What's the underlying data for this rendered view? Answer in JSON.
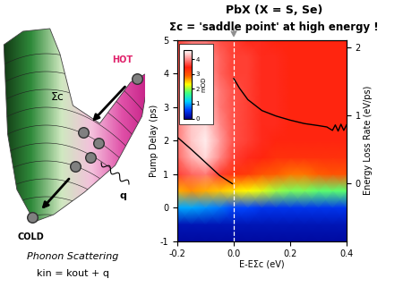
{
  "header": {
    "title": "PbX (X = S, Se)",
    "subtitle": "Σc = 'saddle point' at high energy !"
  },
  "diagram": {
    "hot": "HOT",
    "cold": "COLD",
    "sigma": "Σc",
    "q": "q",
    "caption": "Phonon Scattering",
    "equation": "kin = kout + q"
  },
  "chart_data": {
    "type": "heatmap",
    "x": [
      -0.2,
      -0.15,
      -0.1,
      -0.05,
      0.0,
      0.05,
      0.1,
      0.15,
      0.2,
      0.25,
      0.3,
      0.35,
      0.4
    ],
    "y": [
      -1,
      -0.5,
      0,
      0.5,
      1,
      1.5,
      2,
      2.5,
      3,
      3.5,
      4,
      4.5,
      5
    ],
    "cells": [
      [
        0.1,
        0.1,
        0.1,
        0.1,
        0.1,
        0.1,
        0.1,
        0.1,
        0.1,
        0.1,
        0.1,
        0.1,
        0.1
      ],
      [
        0.2,
        0.2,
        0.2,
        0.2,
        0.2,
        0.2,
        0.2,
        0.2,
        0.2,
        0.2,
        0.2,
        0.2,
        0.2
      ],
      [
        1.0,
        1.0,
        0.9,
        0.8,
        0.6,
        0.6,
        0.5,
        0.5,
        0.5,
        0.5,
        0.5,
        0.5,
        0.5
      ],
      [
        2.6,
        2.7,
        2.6,
        2.5,
        2.4,
        2.3,
        2.2,
        2.0,
        1.9,
        1.9,
        1.8,
        1.8,
        1.8
      ],
      [
        3.6,
        3.8,
        3.9,
        3.6,
        3.3,
        3.2,
        3.0,
        2.9,
        2.8,
        2.8,
        2.9,
        3.0,
        3.0
      ],
      [
        3.8,
        4.2,
        4.4,
        4.0,
        3.6,
        3.5,
        3.4,
        3.3,
        3.3,
        3.3,
        3.3,
        3.3,
        3.3
      ],
      [
        3.9,
        4.3,
        4.5,
        4.1,
        3.7,
        3.6,
        3.5,
        3.4,
        3.4,
        3.4,
        3.4,
        3.4,
        3.4
      ],
      [
        3.9,
        4.3,
        4.4,
        4.0,
        3.7,
        3.6,
        3.5,
        3.5,
        3.4,
        3.4,
        3.4,
        3.4,
        3.4
      ],
      [
        3.8,
        4.2,
        4.3,
        3.9,
        3.7,
        3.6,
        3.5,
        3.5,
        3.4,
        3.4,
        3.4,
        3.4,
        3.4
      ],
      [
        3.8,
        4.1,
        4.2,
        3.9,
        3.7,
        3.6,
        3.5,
        3.5,
        3.4,
        3.4,
        3.4,
        3.4,
        3.4
      ],
      [
        3.7,
        4.0,
        4.1,
        3.8,
        3.6,
        3.6,
        3.5,
        3.5,
        3.4,
        3.4,
        3.4,
        3.4,
        3.4
      ],
      [
        3.7,
        3.9,
        4.0,
        3.8,
        3.6,
        3.6,
        3.5,
        3.5,
        3.4,
        3.4,
        3.4,
        3.4,
        3.4
      ],
      [
        3.6,
        3.9,
        3.9,
        3.7,
        3.6,
        3.5,
        3.5,
        3.4,
        3.4,
        3.4,
        3.4,
        3.4,
        3.4
      ]
    ],
    "xlim": [
      -0.2,
      0.4
    ],
    "ylim": [
      -1,
      5
    ],
    "xticks": [
      -0.2,
      {
        "value": 0,
        "label": "0.0"
      },
      0.2,
      0.4
    ],
    "yticks": [
      -1,
      0,
      1,
      2,
      3,
      4,
      5
    ],
    "xlabel": "E-EΣc (eV)",
    "ylabel": "Pump Delay (ps)",
    "y2label": "Energy Loss Rate (eV/ps)",
    "y2lim": [
      -0.84,
      2.1
    ],
    "y2ticks": [
      0,
      1,
      2
    ],
    "colorbar": {
      "label": "mOD",
      "range": [
        0,
        4.6
      ],
      "ticks": [
        0,
        1,
        2,
        3,
        4
      ]
    },
    "vline": 0,
    "series": [
      {
        "color": "#000000",
        "axis": "y2",
        "type": "line",
        "x": [
          -0.2,
          -0.15,
          -0.1,
          -0.05,
          -0.02,
          -0.005
        ],
        "values": [
          0.68,
          0.5,
          0.31,
          0.12,
          0.04,
          0.0
        ]
      },
      {
        "color": "#000000",
        "axis": "y2",
        "type": "line",
        "x": [
          0.0,
          0.02,
          0.05,
          0.1,
          0.15,
          0.2,
          0.25,
          0.3,
          0.33,
          0.35,
          0.36,
          0.37,
          0.38,
          0.39,
          0.4
        ],
        "values": [
          1.54,
          1.4,
          1.23,
          1.07,
          0.99,
          0.93,
          0.88,
          0.85,
          0.83,
          0.78,
          0.86,
          0.77,
          0.87,
          0.78,
          0.86
        ]
      }
    ]
  }
}
